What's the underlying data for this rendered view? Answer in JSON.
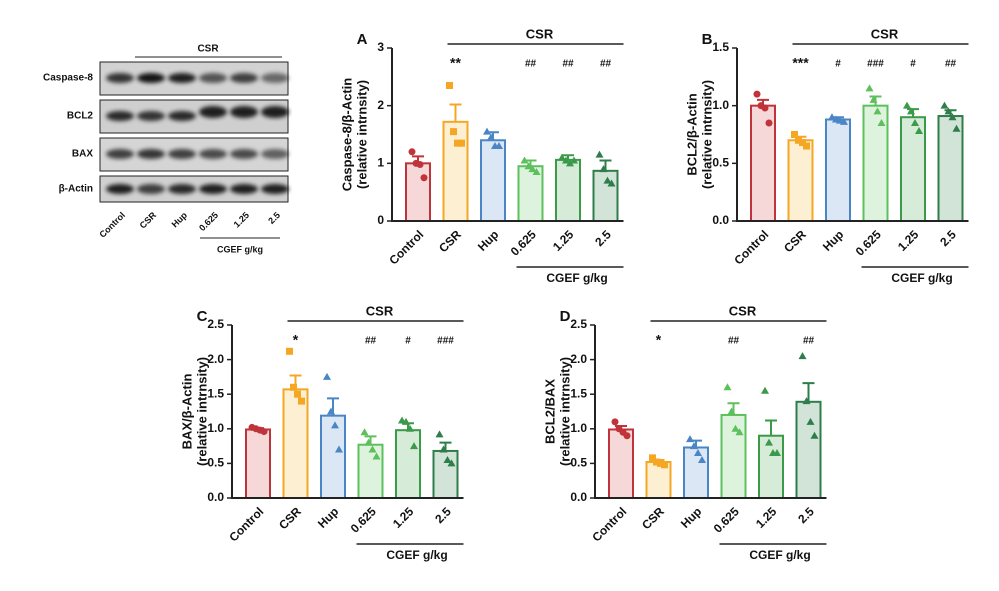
{
  "blot": {
    "rows": [
      "Caspase-8",
      "BCL2",
      "BAX",
      "β-Actin"
    ],
    "lanes": [
      "Control",
      "CSR",
      "Hup",
      "0.625",
      "1.25",
      "2.5"
    ],
    "top_group": "CSR",
    "bottom_group": "CGEF g/kg"
  },
  "chart_data": [
    {
      "type": "bar",
      "panel": "A",
      "y_label": [
        "Caspase-8/β-Actin",
        "(relative intrnsity)"
      ],
      "categories": [
        "Control",
        "CSR",
        "Hup",
        "0.625",
        "1.25",
        "2.5"
      ],
      "values": [
        1.0,
        1.72,
        1.4,
        0.95,
        1.06,
        0.87
      ],
      "errors": [
        0.12,
        0.3,
        0.14,
        0.1,
        0.08,
        0.18
      ],
      "points": [
        [
          1.2,
          1.0,
          0.98,
          0.75
        ],
        [
          2.35,
          1.55,
          1.35,
          1.35
        ],
        [
          1.55,
          1.45,
          1.3,
          1.3
        ],
        [
          1.05,
          0.95,
          0.9,
          0.85
        ],
        [
          1.1,
          1.05,
          1.0,
          1.05
        ],
        [
          1.15,
          0.9,
          0.7,
          0.65
        ]
      ],
      "annotations": [
        null,
        "**",
        null,
        "##",
        "##",
        "##"
      ],
      "ylim": [
        0,
        3
      ],
      "yticks": [
        0,
        1,
        2,
        3
      ],
      "colors": [
        "#c0333b",
        "#f5a623",
        "#4a86c5",
        "#5cc05c",
        "#3a9a4a",
        "#2e7d4a"
      ],
      "fills": [
        "#f6d8d8",
        "#fdf0d2",
        "#dbe7f4",
        "#def3de",
        "#d6ebd8",
        "#d1e4d7"
      ],
      "markers": [
        "circle",
        "square",
        "triangle",
        "triangle",
        "triangle",
        "triangle"
      ],
      "top_group": "CSR",
      "bottom_group": "CGEF g/kg"
    },
    {
      "type": "bar",
      "panel": "B",
      "y_label": [
        "BCL2/β-Actin",
        "(relative intrnsity)"
      ],
      "categories": [
        "Control",
        "CSR",
        "Hup",
        "0.625",
        "1.25",
        "2.5"
      ],
      "values": [
        1.0,
        0.7,
        0.88,
        1.0,
        0.9,
        0.91
      ],
      "errors": [
        0.05,
        0.03,
        0.02,
        0.08,
        0.07,
        0.05
      ],
      "points": [
        [
          1.1,
          1.0,
          0.98,
          0.85
        ],
        [
          0.75,
          0.7,
          0.68,
          0.65
        ],
        [
          0.9,
          0.88,
          0.87,
          0.86
        ],
        [
          1.15,
          1.05,
          0.95,
          0.85
        ],
        [
          1.0,
          0.95,
          0.85,
          0.78
        ],
        [
          1.0,
          0.95,
          0.9,
          0.8
        ]
      ],
      "annotations": [
        null,
        "***",
        "#",
        "###",
        "#",
        "##"
      ],
      "ylim": [
        0,
        1.5
      ],
      "yticks": [
        {
          "value": 0,
          "label": "0.0"
        },
        0.5,
        {
          "value": 1,
          "label": "1.0"
        },
        1.5
      ],
      "colors": [
        "#c0333b",
        "#f5a623",
        "#4a86c5",
        "#5cc05c",
        "#3a9a4a",
        "#2e7d4a"
      ],
      "fills": [
        "#f6d8d8",
        "#fdf0d2",
        "#dbe7f4",
        "#def3de",
        "#d6ebd8",
        "#d1e4d7"
      ],
      "markers": [
        "circle",
        "square",
        "triangle",
        "triangle",
        "triangle",
        "triangle"
      ],
      "top_group": "CSR",
      "bottom_group": "CGEF g/kg"
    },
    {
      "type": "bar",
      "panel": "C",
      "y_label": [
        "BAX/β-Actin",
        "(relative intrnsity)"
      ],
      "categories": [
        "Control",
        "CSR",
        "Hup",
        "0.625",
        "1.25",
        "2.5"
      ],
      "values": [
        0.99,
        1.57,
        1.19,
        0.77,
        0.98,
        0.68
      ],
      "errors": [
        0.02,
        0.2,
        0.25,
        0.12,
        0.1,
        0.12
      ],
      "points": [
        [
          1.02,
          1.0,
          0.98,
          0.96
        ],
        [
          2.12,
          1.6,
          1.5,
          1.4
        ],
        [
          1.75,
          1.25,
          1.05,
          0.7
        ],
        [
          0.95,
          0.8,
          0.7,
          0.6
        ],
        [
          1.12,
          1.1,
          1.0,
          0.75
        ],
        [
          0.92,
          0.7,
          0.55,
          0.5
        ]
      ],
      "annotations": [
        null,
        "*",
        null,
        "##",
        "#",
        "###"
      ],
      "ylim": [
        0,
        2.5
      ],
      "yticks": [
        {
          "value": 0,
          "label": "0.0"
        },
        0.5,
        {
          "value": 1,
          "label": "1.0"
        },
        1.5,
        {
          "value": 2,
          "label": "2.0"
        },
        2.5
      ],
      "colors": [
        "#c0333b",
        "#f5a623",
        "#4a86c5",
        "#5cc05c",
        "#3a9a4a",
        "#2e7d4a"
      ],
      "fills": [
        "#f6d8d8",
        "#fdf0d2",
        "#dbe7f4",
        "#def3de",
        "#d6ebd8",
        "#d1e4d7"
      ],
      "markers": [
        "circle",
        "square",
        "triangle",
        "triangle",
        "triangle",
        "triangle"
      ],
      "top_group": "CSR",
      "bottom_group": "CGEF g/kg"
    },
    {
      "type": "bar",
      "panel": "D",
      "y_label": [
        "BCL2/BAX",
        "(relative intrnsity)"
      ],
      "categories": [
        "Control",
        "CSR",
        "Hup",
        "0.625",
        "1.25",
        "2.5"
      ],
      "values": [
        0.99,
        0.52,
        0.73,
        1.2,
        0.9,
        1.39
      ],
      "errors": [
        0.05,
        0.03,
        0.1,
        0.17,
        0.22,
        0.27
      ],
      "points": [
        [
          1.1,
          1.0,
          0.95,
          0.9
        ],
        [
          0.58,
          0.52,
          0.5,
          0.48
        ],
        [
          0.85,
          0.75,
          0.65,
          0.55
        ],
        [
          1.6,
          1.25,
          1.0,
          0.95
        ],
        [
          1.55,
          0.8,
          0.65,
          0.65
        ],
        [
          2.05,
          1.4,
          1.1,
          0.9
        ]
      ],
      "annotations": [
        null,
        "*",
        null,
        "##",
        null,
        "##"
      ],
      "ylim": [
        0,
        2.5
      ],
      "yticks": [
        {
          "value": 0,
          "label": "0.0"
        },
        0.5,
        {
          "value": 1,
          "label": "1.0"
        },
        1.5,
        {
          "value": 2,
          "label": "2.0"
        },
        2.5
      ],
      "colors": [
        "#c0333b",
        "#f5a623",
        "#4a86c5",
        "#5cc05c",
        "#3a9a4a",
        "#2e7d4a"
      ],
      "fills": [
        "#f6d8d8",
        "#fdf0d2",
        "#dbe7f4",
        "#def3de",
        "#d6ebd8",
        "#d1e4d7"
      ],
      "markers": [
        "circle",
        "square",
        "triangle",
        "triangle",
        "triangle",
        "triangle"
      ],
      "top_group": "CSR",
      "bottom_group": "CGEF g/kg"
    }
  ]
}
